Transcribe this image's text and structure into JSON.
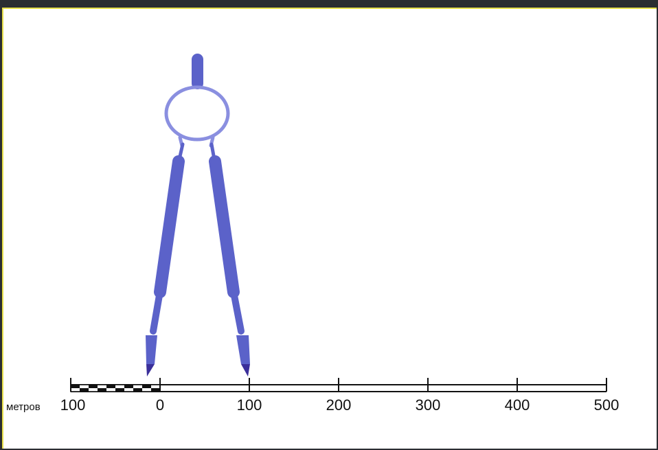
{
  "scale_bar": {
    "unit_label": "метров",
    "left_label": "100",
    "tick_labels": [
      "0",
      "100",
      "200",
      "300",
      "400",
      "500"
    ]
  },
  "colors": {
    "compass_leg": "#5b62c9",
    "compass_head": "#8a8fe0",
    "compass_tip": "#3b2f9a",
    "panel_border": "#e8e04a",
    "frame": "#2b2d31"
  },
  "icons": {
    "compass": "drawing-compass-icon"
  }
}
